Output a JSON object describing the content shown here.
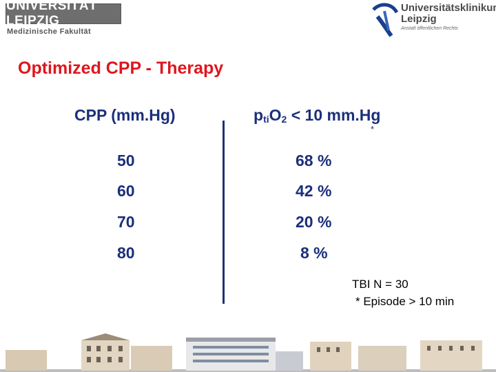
{
  "header": {
    "university": "UNIVERSITÄT LEIPZIG",
    "faculty": "Medizinische Fakultät",
    "clinic_line1": "Universitätsklinikum",
    "clinic_line2": "Leipzig",
    "clinic_sub": "Anstalt öffentlichen Rechts"
  },
  "title": "Optimized CPP - Therapy",
  "table": {
    "left_header": "CPP (mm.Hg)",
    "right_header": {
      "p": "p",
      "sub": "ti",
      "o": "O",
      "two": "2",
      "rest": " < 10 mm.Hg"
    },
    "asterisk": "*",
    "rows": [
      {
        "cpp": "50",
        "pct": "68 %"
      },
      {
        "cpp": "60",
        "pct": "42 %"
      },
      {
        "cpp": "70",
        "pct": "20 %"
      },
      {
        "cpp": "80",
        "pct": "8 %"
      }
    ]
  },
  "notes": {
    "line1": "TBI N = 30",
    "line2": "* Episode > 10 min"
  },
  "colors": {
    "title_red": "#e0151c",
    "table_blue": "#1b2f7a",
    "logo_gray": "#6e6e6e"
  }
}
